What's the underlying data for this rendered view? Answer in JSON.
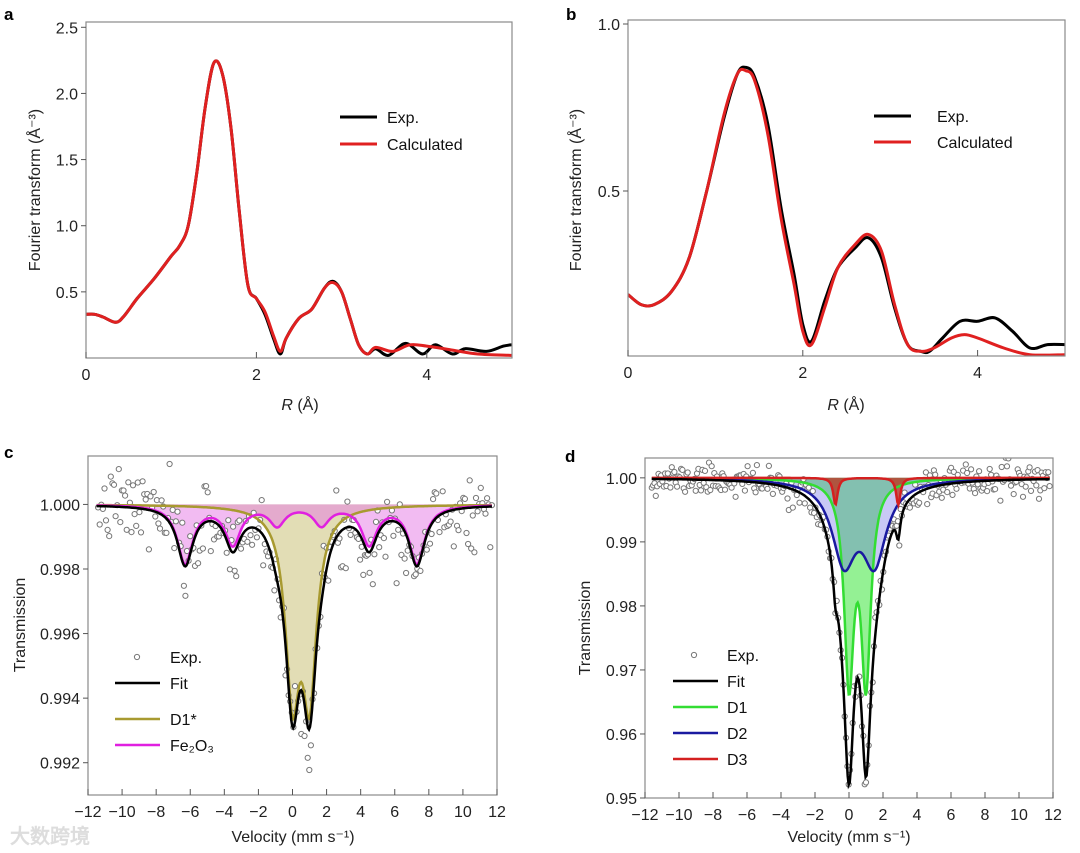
{
  "watermark": "大数跨境",
  "chart_data": [
    {
      "panel": "a",
      "type": "line",
      "xlabel_prefix": "R",
      "xlabel_suffix": " (Å)",
      "ylabel": "Fourier transform (Å⁻³)",
      "xlim": [
        0,
        5
      ],
      "ylim": [
        0,
        2.54
      ],
      "xticks": [
        {
          "v": 0,
          "label": "0"
        },
        {
          "v": 2,
          "label": "2"
        },
        {
          "v": 4,
          "label": "4"
        }
      ],
      "yticks": [
        {
          "v": 0.5,
          "label": "0.5"
        },
        {
          "v": 1.0,
          "label": "1.0"
        },
        {
          "v": 1.5,
          "label": "1.5"
        },
        {
          "v": 2.0,
          "label": "2.0"
        },
        {
          "v": 2.5,
          "label": "2.5"
        }
      ],
      "legend_position": "top-right",
      "series": [
        {
          "name": "Exp.",
          "color": "#000000",
          "x": [
            0,
            0.1,
            0.2,
            0.35,
            0.45,
            0.6,
            0.8,
            1.0,
            1.1,
            1.2,
            1.3,
            1.4,
            1.5,
            1.6,
            1.7,
            1.8,
            1.9,
            2.0,
            2.1,
            2.2,
            2.28,
            2.35,
            2.5,
            2.65,
            2.8,
            2.9,
            3.0,
            3.1,
            3.2,
            3.3,
            3.4,
            3.55,
            3.75,
            3.95,
            4.1,
            4.3,
            4.45,
            4.7,
            4.9,
            5.0
          ],
          "y": [
            0.33,
            0.33,
            0.31,
            0.27,
            0.32,
            0.45,
            0.6,
            0.77,
            0.85,
            1.0,
            1.4,
            1.9,
            2.23,
            2.15,
            1.75,
            1.1,
            0.55,
            0.45,
            0.33,
            0.15,
            0.03,
            0.15,
            0.3,
            0.37,
            0.53,
            0.58,
            0.5,
            0.3,
            0.1,
            0.03,
            0.07,
            0.02,
            0.11,
            0.03,
            0.1,
            0.03,
            0.07,
            0.05,
            0.09,
            0.1
          ]
        },
        {
          "name": "Calculated",
          "color": "#e02020",
          "x": [
            0,
            0.1,
            0.2,
            0.35,
            0.45,
            0.6,
            0.8,
            1.0,
            1.1,
            1.2,
            1.3,
            1.4,
            1.5,
            1.6,
            1.7,
            1.8,
            1.9,
            2.0,
            2.1,
            2.2,
            2.28,
            2.35,
            2.5,
            2.65,
            2.8,
            2.9,
            3.0,
            3.1,
            3.2,
            3.3,
            3.4,
            3.6,
            3.8,
            4.0,
            4.3,
            4.6,
            5.0
          ],
          "y": [
            0.33,
            0.33,
            0.31,
            0.27,
            0.32,
            0.45,
            0.6,
            0.77,
            0.85,
            1.0,
            1.4,
            1.9,
            2.23,
            2.15,
            1.75,
            1.1,
            0.55,
            0.45,
            0.35,
            0.17,
            0.05,
            0.15,
            0.3,
            0.37,
            0.53,
            0.57,
            0.5,
            0.3,
            0.1,
            0.03,
            0.08,
            0.05,
            0.1,
            0.09,
            0.06,
            0.03,
            0.02
          ]
        }
      ]
    },
    {
      "panel": "b",
      "type": "line",
      "xlabel_prefix": "R",
      "xlabel_suffix": " (Å)",
      "ylabel": "Fourier transform (Å⁻³)",
      "xlim": [
        0,
        5
      ],
      "ylim": [
        0.006,
        1.012
      ],
      "xticks": [
        {
          "v": 0,
          "label": "0"
        },
        {
          "v": 2,
          "label": "2"
        },
        {
          "v": 4,
          "label": "4"
        }
      ],
      "yticks": [
        {
          "v": 0.5,
          "label": "0.5"
        },
        {
          "v": 1.0,
          "label": "1.0"
        }
      ],
      "legend_position": "top-right",
      "series": [
        {
          "name": "Exp.",
          "color": "#000000",
          "x": [
            0,
            0.15,
            0.3,
            0.5,
            0.7,
            0.9,
            1.1,
            1.25,
            1.35,
            1.45,
            1.6,
            1.75,
            1.9,
            2.0,
            2.1,
            2.25,
            2.4,
            2.6,
            2.75,
            2.9,
            3.05,
            3.2,
            3.35,
            3.45,
            3.6,
            3.8,
            4.0,
            4.2,
            4.4,
            4.6,
            4.8,
            5.0
          ],
          "y": [
            0.19,
            0.16,
            0.16,
            0.2,
            0.3,
            0.5,
            0.72,
            0.85,
            0.87,
            0.84,
            0.7,
            0.45,
            0.25,
            0.1,
            0.05,
            0.17,
            0.27,
            0.33,
            0.36,
            0.3,
            0.15,
            0.04,
            0.02,
            0.02,
            0.06,
            0.11,
            0.11,
            0.12,
            0.08,
            0.03,
            0.04,
            0.04
          ]
        },
        {
          "name": "Calculated",
          "color": "#e02020",
          "x": [
            0,
            0.15,
            0.3,
            0.5,
            0.7,
            0.9,
            1.1,
            1.25,
            1.35,
            1.45,
            1.6,
            1.75,
            1.9,
            2.0,
            2.1,
            2.25,
            2.4,
            2.6,
            2.75,
            2.9,
            3.05,
            3.2,
            3.35,
            3.5,
            3.7,
            3.85,
            4.0,
            4.3,
            4.6,
            5.0
          ],
          "y": [
            0.19,
            0.16,
            0.16,
            0.2,
            0.3,
            0.5,
            0.73,
            0.85,
            0.86,
            0.83,
            0.67,
            0.42,
            0.22,
            0.08,
            0.04,
            0.15,
            0.27,
            0.34,
            0.37,
            0.32,
            0.16,
            0.04,
            0.02,
            0.03,
            0.06,
            0.07,
            0.06,
            0.03,
            0.01,
            0.01
          ]
        }
      ]
    },
    {
      "panel": "c",
      "type": "line",
      "xlabel": "Velocity (mm s⁻¹)",
      "ylabel": "Transmission",
      "xlim": [
        -12,
        12
      ],
      "ylim": [
        0.991,
        1.0015
      ],
      "xticks": [
        {
          "v": -12,
          "label": "−12"
        },
        {
          "v": -10,
          "label": "−10"
        },
        {
          "v": -8,
          "label": "−8"
        },
        {
          "v": -6,
          "label": "−6"
        },
        {
          "v": -4,
          "label": "−4"
        },
        {
          "v": -2,
          "label": "−2"
        },
        {
          "v": 0,
          "label": "0"
        },
        {
          "v": 2,
          "label": "2"
        },
        {
          "v": 4,
          "label": "4"
        },
        {
          "v": 6,
          "label": "6"
        },
        {
          "v": 8,
          "label": "8"
        },
        {
          "v": 10,
          "label": "10"
        },
        {
          "v": 12,
          "label": "12"
        }
      ],
      "yticks": [
        {
          "v": 0.992,
          "label": "0.992"
        },
        {
          "v": 0.994,
          "label": "0.994"
        },
        {
          "v": 0.996,
          "label": "0.996"
        },
        {
          "v": 0.998,
          "label": "0.998"
        },
        {
          "v": 1.0,
          "label": "1.000"
        }
      ],
      "legend_position": "bottom-left",
      "exp": {
        "name": "Exp.",
        "x_range": [
          -11.5,
          11.7
        ],
        "n_points": 250,
        "noise_sd": 0.0006,
        "seed": 7
      },
      "fit": {
        "name": "Fit",
        "color": "#000000"
      },
      "components": [
        {
          "name": "D1*",
          "color": "#a89a30",
          "fill": "rgba(190,180,90,0.45)",
          "lines": [
            {
              "center": 0.0,
              "depth": 0.0055,
              "hwhm": 0.5
            },
            {
              "center": 1.0,
              "depth": 0.0055,
              "hwhm": 0.5
            }
          ]
        },
        {
          "name": "Fe₂O₃",
          "color": "#e020e0",
          "fill": "rgba(230,120,230,0.5)",
          "lines": [
            {
              "center": -6.3,
              "depth": 0.0018,
              "hwhm": 0.55
            },
            {
              "center": -3.5,
              "depth": 0.0012,
              "hwhm": 0.55
            },
            {
              "center": -0.9,
              "depth": 0.0006,
              "hwhm": 0.55
            },
            {
              "center": 1.7,
              "depth": 0.0006,
              "hwhm": 0.55
            },
            {
              "center": 4.5,
              "depth": 0.0012,
              "hwhm": 0.55
            },
            {
              "center": 7.3,
              "depth": 0.0018,
              "hwhm": 0.55
            }
          ]
        }
      ]
    },
    {
      "panel": "d",
      "type": "line",
      "xlabel": "Velocity (mm s⁻¹)",
      "ylabel": "Transmission",
      "xlim": [
        -12,
        12
      ],
      "ylim": [
        0.95,
        1.0031
      ],
      "xticks": [
        {
          "v": -12,
          "label": "−12"
        },
        {
          "v": -10,
          "label": "−10"
        },
        {
          "v": -8,
          "label": "−8"
        },
        {
          "v": -6,
          "label": "−6"
        },
        {
          "v": -4,
          "label": "−4"
        },
        {
          "v": -2,
          "label": "−2"
        },
        {
          "v": 0,
          "label": "0"
        },
        {
          "v": 2,
          "label": "2"
        },
        {
          "v": 4,
          "label": "4"
        },
        {
          "v": 6,
          "label": "6"
        },
        {
          "v": 8,
          "label": "8"
        },
        {
          "v": 10,
          "label": "10"
        },
        {
          "v": 12,
          "label": "12"
        }
      ],
      "yticks": [
        {
          "v": 0.95,
          "label": "0.95"
        },
        {
          "v": 0.96,
          "label": "0.96"
        },
        {
          "v": 0.97,
          "label": "0.97"
        },
        {
          "v": 0.98,
          "label": "0.98"
        },
        {
          "v": 0.99,
          "label": "0.99"
        },
        {
          "v": 1.0,
          "label": "1.00"
        }
      ],
      "legend_position": "bottom-left",
      "exp": {
        "name": "Exp.",
        "x_range": [
          -11.6,
          11.8
        ],
        "n_points": 300,
        "noise_sd": 0.0012,
        "seed": 11
      },
      "fit": {
        "name": "Fit",
        "color": "#000000"
      },
      "components": [
        {
          "name": "D1",
          "color": "#33dd33",
          "fill": "rgba(60,230,60,0.55)",
          "lines": [
            {
              "center": 0.0,
              "depth": 0.0308,
              "hwhm": 0.34
            },
            {
              "center": 1.0,
              "depth": 0.0308,
              "hwhm": 0.34
            }
          ]
        },
        {
          "name": "D2",
          "color": "#1a1aa0",
          "fill": "rgba(100,100,230,0.35)",
          "lines": [
            {
              "center": -0.3,
              "depth": 0.01227,
              "hwhm": 0.85
            },
            {
              "center": 1.5,
              "depth": 0.01227,
              "hwhm": 0.85
            }
          ]
        },
        {
          "name": "D3",
          "color": "#d42020",
          "fill": "rgba(190,50,25,0.75)",
          "lines": [
            {
              "center": -0.8,
              "depth": 0.0042,
              "hwhm": 0.15
            },
            {
              "center": 2.9,
              "depth": 0.0042,
              "hwhm": 0.15
            }
          ]
        }
      ]
    }
  ]
}
